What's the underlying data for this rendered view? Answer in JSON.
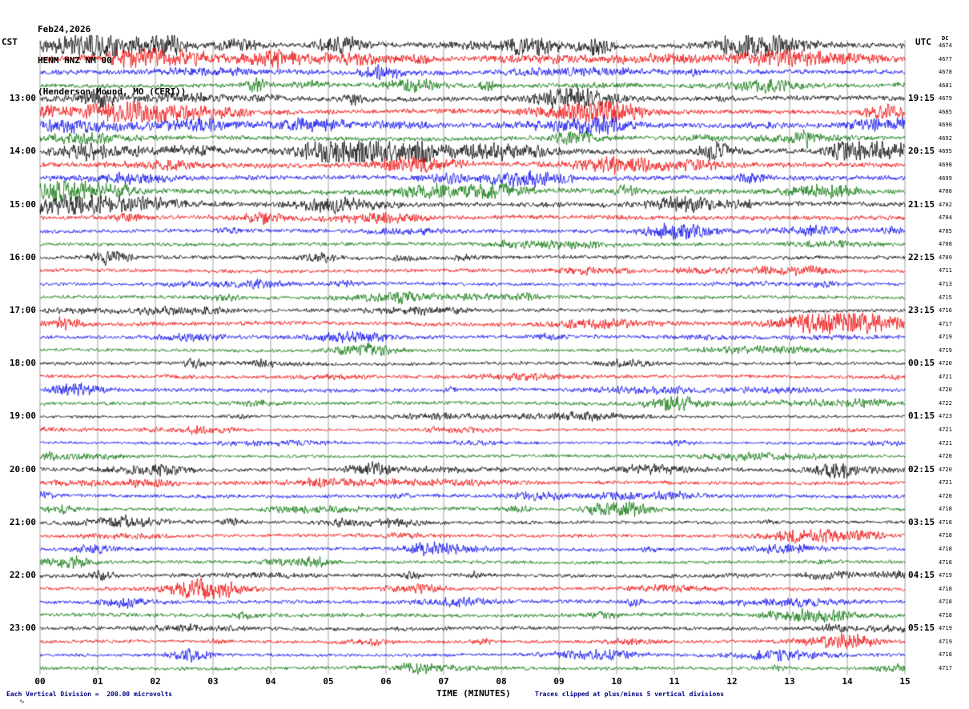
{
  "title": {
    "date": "Feb24,2026",
    "station": "HENM HNZ NM 00",
    "location": "(Henderson Mound, MO (CERI))"
  },
  "axes": {
    "left_label": "CST",
    "right_label": "UTC",
    "dc_label": "DC",
    "x_title": "TIME (MINUTES)",
    "x_ticks": [
      "00",
      "01",
      "02",
      "03",
      "04",
      "05",
      "06",
      "07",
      "08",
      "09",
      "10",
      "11",
      "12",
      "13",
      "14",
      "15"
    ],
    "left_hour_labels": [
      {
        "row": 4,
        "label": "13:00"
      },
      {
        "row": 8,
        "label": "14:00"
      },
      {
        "row": 12,
        "label": "15:00"
      },
      {
        "row": 16,
        "label": "16:00"
      },
      {
        "row": 20,
        "label": "17:00"
      },
      {
        "row": 24,
        "label": "18:00"
      },
      {
        "row": 28,
        "label": "19:00"
      },
      {
        "row": 32,
        "label": "20:00"
      },
      {
        "row": 36,
        "label": "21:00"
      },
      {
        "row": 40,
        "label": "22:00"
      },
      {
        "row": 44,
        "label": "23:00"
      }
    ],
    "right_hour_labels": [
      {
        "row": 4,
        "label": "19:15"
      },
      {
        "row": 8,
        "label": "20:15"
      },
      {
        "row": 12,
        "label": "21:15"
      },
      {
        "row": 16,
        "label": "22:15"
      },
      {
        "row": 20,
        "label": "23:15"
      },
      {
        "row": 24,
        "label": "00:15"
      },
      {
        "row": 28,
        "label": "01:15"
      },
      {
        "row": 32,
        "label": "02:15"
      },
      {
        "row": 36,
        "label": "03:15"
      },
      {
        "row": 40,
        "label": "04:15"
      },
      {
        "row": 44,
        "label": "05:15"
      }
    ]
  },
  "footer": {
    "left": "Each Vertical Division =  200.00 microvolts",
    "right": "Traces clipped at plus/minus 5 vertical divisions",
    "corner_mark": "∿"
  },
  "colors": {
    "trace_cycle": [
      "#000000",
      "#ee0000",
      "#0000ee",
      "#007000"
    ],
    "grid": "#8a8a8a",
    "footer_text": "#000080"
  },
  "chart_data": {
    "type": "line",
    "description": "Helicorder seismogram: 48 rows of 15 minutes each starting 12:00 CST Feb 24 2026, station HENM HNZ NM 00, trace colors cycling black/red/blue/green; waveform is continuous seismic noise with intermittent bursts, clipped at plus/minus 5 vertical divisions (200.00 microvolts per division).",
    "rows": 48,
    "row_minutes": 15,
    "start_time_cst": "12:00",
    "x_range_minutes": [
      0,
      15
    ],
    "dc_offsets": [
      4674,
      4677,
      4678,
      4681,
      4679,
      4685,
      4690,
      4692,
      4695,
      4698,
      4699,
      4700,
      4702,
      4704,
      4705,
      4708,
      4709,
      4711,
      4713,
      4715,
      4716,
      4717,
      4719,
      4719,
      4720,
      4721,
      4720,
      4722,
      4723,
      4721,
      4721,
      4720,
      4720,
      4721,
      4720,
      4718,
      4718,
      4718,
      4718,
      4718,
      4719,
      4718,
      4718,
      4718,
      4719,
      4719,
      4718,
      4717
    ],
    "activity": [
      0.95,
      0.9,
      0.85,
      0.8,
      0.9,
      0.85,
      0.8,
      0.75,
      1.0,
      0.9,
      0.9,
      0.95,
      0.85,
      0.8,
      0.6,
      0.55,
      0.6,
      0.55,
      0.5,
      0.5,
      0.55,
      0.7,
      0.5,
      0.45,
      0.5,
      0.5,
      0.6,
      0.55,
      0.35,
      0.3,
      0.35,
      0.4,
      0.6,
      0.6,
      0.55,
      0.5,
      0.5,
      0.5,
      0.55,
      0.5,
      0.6,
      0.55,
      0.6,
      0.65,
      0.6,
      0.5,
      0.45,
      0.5
    ],
    "events": [
      {
        "row": 0,
        "minute": 1.0,
        "amp": 9,
        "width_min": 0.6
      },
      {
        "row": 0,
        "minute": 5.2,
        "amp": 8,
        "width_min": 0.4
      },
      {
        "row": 0,
        "minute": 8.5,
        "amp": 9,
        "width_min": 0.5
      },
      {
        "row": 4,
        "minute": 1.0,
        "amp": 8,
        "width_min": 0.5
      },
      {
        "row": 8,
        "minute": 0.8,
        "amp": 9,
        "width_min": 0.5
      },
      {
        "row": 8,
        "minute": 7.8,
        "amp": 8,
        "width_min": 1.0
      },
      {
        "row": 11,
        "minute": 0.3,
        "amp": 10,
        "width_min": 0.4
      },
      {
        "row": 14,
        "minute": 11.0,
        "amp": 7,
        "width_min": 0.6
      },
      {
        "row": 16,
        "minute": 1.2,
        "amp": 7,
        "width_min": 0.3
      },
      {
        "row": 21,
        "minute": 13.7,
        "amp": 10,
        "width_min": 0.9
      },
      {
        "row": 26,
        "minute": 0.6,
        "amp": 7,
        "width_min": 0.4
      },
      {
        "row": 32,
        "minute": 13.8,
        "amp": 8,
        "width_min": 0.4
      },
      {
        "row": 41,
        "minute": 3.0,
        "amp": 7,
        "width_min": 0.5
      },
      {
        "row": 46,
        "minute": 2.6,
        "amp": 8,
        "width_min": 0.3
      }
    ]
  }
}
